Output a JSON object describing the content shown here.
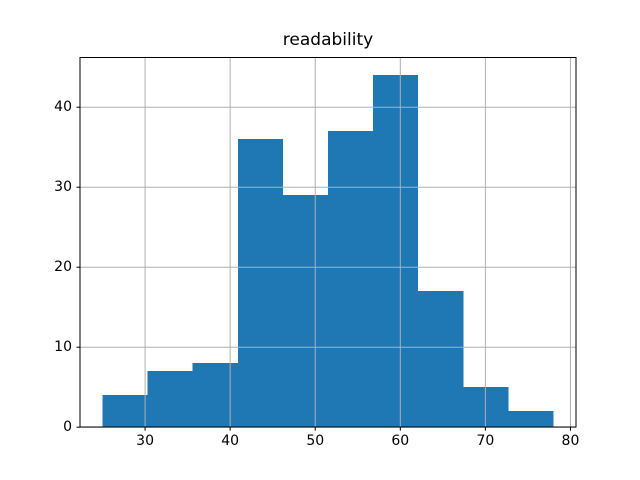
{
  "figure": {
    "background": "#ffffff"
  },
  "chart_data": {
    "type": "bar",
    "subtype": "histogram",
    "title": "readability",
    "xlabel": "",
    "ylabel": "",
    "bin_edges": [
      25.0,
      30.3,
      35.6,
      40.9,
      46.2,
      51.5,
      56.8,
      62.1,
      67.4,
      72.7,
      78.0
    ],
    "counts": [
      4,
      7,
      8,
      36,
      29,
      37,
      44,
      17,
      5,
      2
    ],
    "xticks": [
      30,
      40,
      50,
      60,
      70,
      80
    ],
    "yticks": [
      0,
      10,
      20,
      30,
      40
    ],
    "xlim": [
      22.35,
      80.65
    ],
    "ylim": [
      0,
      46.2
    ],
    "grid": true,
    "grid_above_bars": true,
    "legend_position": "none",
    "colors": {
      "bar": "#1f77b4",
      "grid": "#b0b0b0",
      "axis": "#000000",
      "text": "#000000"
    }
  }
}
